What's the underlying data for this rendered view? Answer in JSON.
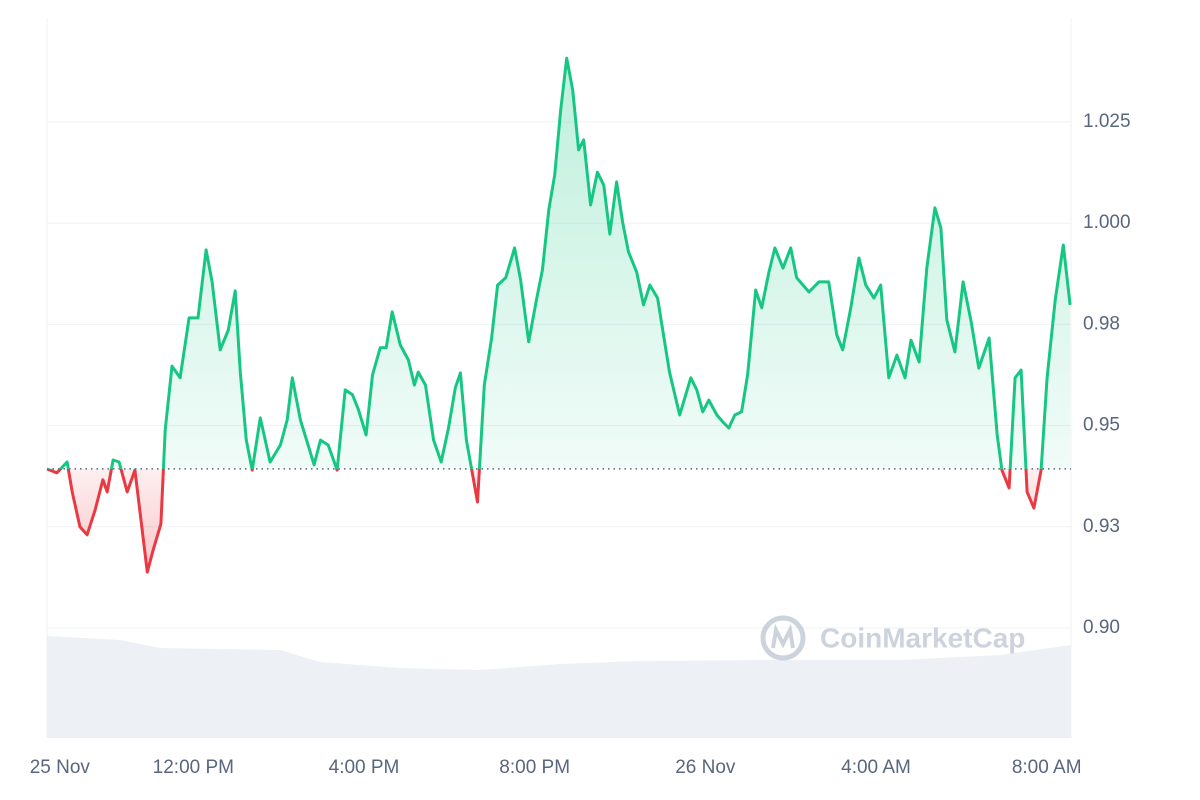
{
  "chart_data": {
    "type": "line",
    "watermark": "CoinMarketCap",
    "color": "#16c784",
    "down_color": "#ea3943",
    "baseline": 0.9393,
    "xlim": [
      8.57,
      32.57
    ],
    "xticks": [
      {
        "value": 8.87,
        "label": "25 Nov"
      },
      {
        "value": 12,
        "label": "12:00 PM"
      },
      {
        "value": 16,
        "label": "4:00 PM"
      },
      {
        "value": 20,
        "label": "8:00 PM"
      },
      {
        "value": 24,
        "label": "26 Nov"
      },
      {
        "value": 28,
        "label": "4:00 AM"
      },
      {
        "value": 32,
        "label": "8:00 AM"
      }
    ],
    "ylim": [
      0.8728,
      1.0507
    ],
    "yticks": [
      {
        "value": 0.9,
        "label": "0.90"
      },
      {
        "value": 0.925,
        "label": "0.93"
      },
      0.95,
      {
        "value": 0.975,
        "label": "0.98"
      },
      {
        "value": 1.0,
        "label": "1.000"
      },
      1.025
    ],
    "grid": true,
    "x": [
      8.57,
      8.8,
      9.04,
      9.16,
      9.34,
      9.51,
      9.7,
      9.88,
      9.98,
      10.12,
      10.26,
      10.45,
      10.63,
      10.92,
      11.06,
      11.24,
      11.34,
      11.5,
      11.69,
      11.9,
      12.11,
      12.3,
      12.44,
      12.63,
      12.82,
      12.98,
      13.1,
      13.24,
      13.38,
      13.57,
      13.8,
      14.04,
      14.2,
      14.32,
      14.51,
      14.69,
      14.83,
      14.98,
      15.16,
      15.37,
      15.56,
      15.73,
      15.87,
      16.05,
      16.2,
      16.38,
      16.52,
      16.66,
      16.85,
      17.04,
      17.18,
      17.27,
      17.44,
      17.63,
      17.81,
      17.98,
      18.14,
      18.26,
      18.4,
      18.66,
      18.82,
      18.99,
      19.13,
      19.32,
      19.53,
      19.67,
      19.86,
      20.04,
      20.18,
      20.33,
      20.47,
      20.61,
      20.75,
      20.89,
      21.03,
      21.15,
      21.31,
      21.47,
      21.62,
      21.76,
      21.92,
      22.06,
      22.2,
      22.39,
      22.55,
      22.7,
      22.88,
      23.02,
      23.16,
      23.4,
      23.66,
      23.8,
      23.94,
      24.08,
      24.27,
      24.41,
      24.55,
      24.69,
      24.85,
      24.99,
      25.18,
      25.32,
      25.49,
      25.63,
      25.82,
      26.0,
      26.14,
      26.43,
      26.66,
      26.89,
      27.08,
      27.22,
      27.41,
      27.6,
      27.76,
      27.95,
      28.11,
      28.3,
      28.49,
      28.68,
      28.82,
      29.01,
      29.19,
      29.38,
      29.52,
      29.66,
      29.85,
      30.04,
      30.23,
      30.41,
      30.65,
      30.84,
      30.95,
      31.12,
      31.26,
      31.4,
      31.54,
      31.7,
      31.87,
      32.01,
      32.2,
      32.39,
      32.55
    ],
    "values": [
      0.9393,
      0.9383,
      0.941,
      0.9336,
      0.925,
      0.923,
      0.9292,
      0.9366,
      0.9336,
      0.9415,
      0.941,
      0.9336,
      0.939,
      0.9138,
      0.9193,
      0.9257,
      0.9489,
      0.9647,
      0.9618,
      0.9766,
      0.9766,
      0.9934,
      0.9855,
      0.9687,
      0.9736,
      0.9833,
      0.9632,
      0.9464,
      0.939,
      0.9519,
      0.941,
      0.9452,
      0.9514,
      0.9618,
      0.9514,
      0.9452,
      0.9403,
      0.9464,
      0.9452,
      0.939,
      0.9588,
      0.9576,
      0.9539,
      0.9477,
      0.9625,
      0.9692,
      0.9692,
      0.9781,
      0.9699,
      0.9662,
      0.96,
      0.9632,
      0.96,
      0.9464,
      0.941,
      0.9494,
      0.9593,
      0.963,
      0.9464,
      0.9311,
      0.96,
      0.9716,
      0.9847,
      0.9865,
      0.9939,
      0.986,
      0.9707,
      0.981,
      0.9884,
      1.0033,
      1.0119,
      1.028,
      1.0408,
      1.0329,
      1.0181,
      1.0206,
      1.0045,
      1.0126,
      1.0094,
      0.9973,
      1.0102,
      1.0003,
      0.9929,
      0.9879,
      0.9798,
      0.9847,
      0.9815,
      0.9724,
      0.9632,
      0.9526,
      0.9618,
      0.9588,
      0.9534,
      0.9563,
      0.9526,
      0.9509,
      0.9494,
      0.9526,
      0.9534,
      0.9625,
      0.9835,
      0.9791,
      0.9879,
      0.9939,
      0.9889,
      0.9939,
      0.9865,
      0.983,
      0.9855,
      0.9855,
      0.9724,
      0.9687,
      0.9791,
      0.9914,
      0.9847,
      0.9815,
      0.9847,
      0.9618,
      0.9674,
      0.9618,
      0.9711,
      0.9657,
      0.9889,
      1.0038,
      0.9988,
      0.9761,
      0.9682,
      0.9855,
      0.9756,
      0.9642,
      0.9716,
      0.9477,
      0.939,
      0.9346,
      0.9618,
      0.9637,
      0.9336,
      0.9296,
      0.939,
      0.9618,
      0.981,
      0.9946,
      0.9798
    ]
  }
}
